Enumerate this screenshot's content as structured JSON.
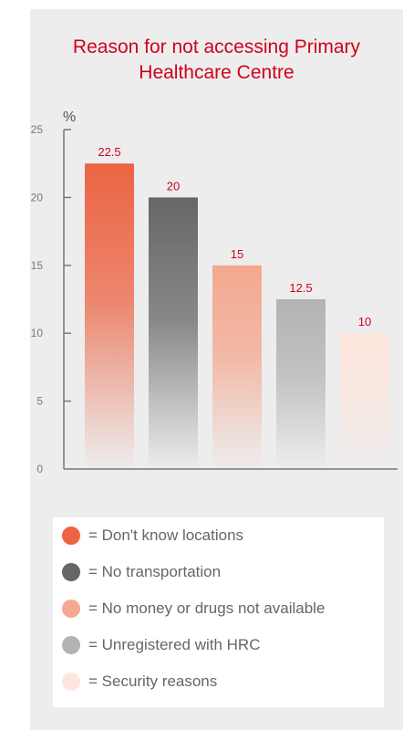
{
  "chart_data": {
    "type": "bar",
    "title": "Reason for not accessing Primary Healthcare Centre",
    "ylabel": "%",
    "ylim": [
      0,
      25
    ],
    "yticks": [
      "0",
      "5",
      "10",
      "15",
      "20",
      "25"
    ],
    "grid": false,
    "legend_position": "bottom",
    "categories": [
      "Don't know locations",
      "No transportation",
      "No money or drugs not available",
      "Unregistered with HRC",
      "Security reasons"
    ],
    "values": [
      22.5,
      20,
      15,
      12.5,
      10
    ],
    "value_labels": [
      "22.5",
      "20",
      "15",
      "12.5",
      "10"
    ],
    "colors": [
      "#ec6443",
      "#666666",
      "#f4a88f",
      "#b3b3b3",
      "#fde6dd"
    ]
  },
  "legend": {
    "items": [
      {
        "label": "= Don't know locations",
        "color": "#ec6443"
      },
      {
        "label": "= No transportation",
        "color": "#666666"
      },
      {
        "label": "= No money or drugs not available",
        "color": "#f4a88f"
      },
      {
        "label": "= Unregistered with HRC",
        "color": "#b3b3b3"
      },
      {
        "label": "= Security reasons",
        "color": "#fde6dd"
      }
    ]
  }
}
